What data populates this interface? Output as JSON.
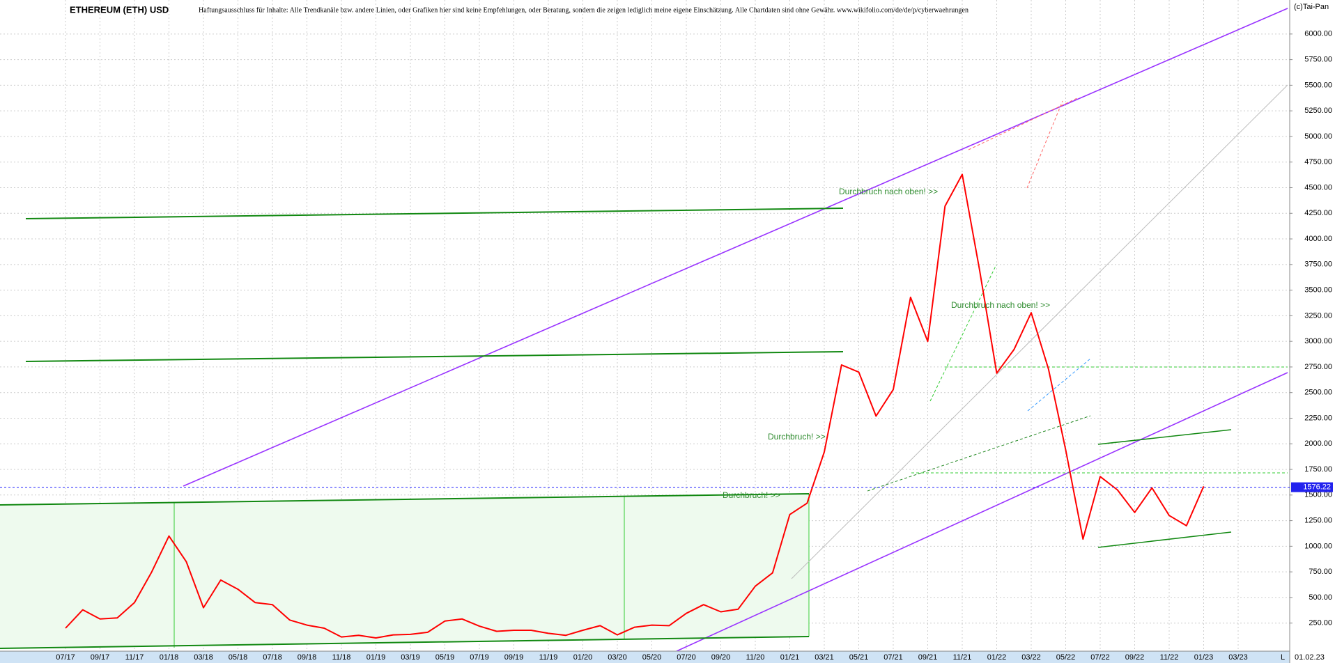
{
  "chart_data": {
    "type": "line",
    "title": "ETHEREUM (ETH) USD",
    "subtitle": "Haftungsausschluss für Inhalte: Alle Trendkanäle bzw. andere Linien, oder Grafiken hier sind keine Empfehlungen, oder Beratung, sondern die zeigen lediglich meine eigene Einschätzung. Alle Chartdaten sind ohne Gewähr. www.wikifolio.com/de/de/p/cyberwaehrungen",
    "source": "(c)Tai-Pan",
    "date_label": "01.02.23",
    "scale_mode": "L",
    "last_price": 1576.22,
    "annotations": [
      "Durchbruch nach oben! >>",
      "Durchbruch nach oben! >>",
      "Durchbruch! >>",
      "Durchbruch! >>"
    ],
    "categories": [
      "07/17",
      null,
      "09/17",
      null,
      "11/17",
      null,
      "01/18",
      null,
      "03/18",
      null,
      "05/18",
      null,
      "07/18",
      null,
      "09/18",
      null,
      "11/18",
      null,
      "01/19",
      null,
      "03/19",
      null,
      "05/19",
      null,
      "07/19",
      null,
      "09/19",
      null,
      "11/19",
      null,
      "01/20",
      null,
      "03/20",
      null,
      "05/20",
      null,
      "07/20",
      null,
      "09/20",
      null,
      "11/20",
      null,
      "01/21",
      null,
      "03/21",
      null,
      "05/21",
      null,
      "07/21",
      null,
      "09/21",
      null,
      "11/21",
      null,
      "01/22",
      null,
      "03/22",
      null,
      "05/22",
      null,
      "07/22",
      null,
      "09/22",
      null,
      "11/22",
      null,
      "01/23",
      null,
      "03/23"
    ],
    "series": [
      {
        "name": "ETH",
        "color": "#ff0000",
        "values": [
          200,
          380,
          290,
          300,
          450,
          750,
          1100,
          850,
          400,
          670,
          580,
          450,
          430,
          280,
          230,
          200,
          115,
          130,
          105,
          135,
          140,
          160,
          270,
          290,
          220,
          170,
          180,
          180,
          150,
          130,
          180,
          225,
          135,
          210,
          230,
          225,
          345,
          430,
          360,
          385,
          610,
          740,
          1310,
          1420,
          1920,
          2770,
          2700,
          2270,
          2530,
          3430,
          3000,
          4320,
          4630,
          3700,
          2690,
          2920,
          3280,
          2730,
          1940,
          1070,
          1680,
          1550,
          1330,
          1570,
          1300,
          1200,
          1585,
          null,
          null
        ]
      }
    ],
    "ylim": [
      -24,
      6332
    ],
    "yticks": [
      {
        "value": 250,
        "label": "250.00"
      },
      {
        "value": 500,
        "label": "500.00"
      },
      {
        "value": 750,
        "label": "750.00"
      },
      {
        "value": 1000,
        "label": "1000.00"
      },
      {
        "value": 1250,
        "label": "1250.00"
      },
      {
        "value": 1500,
        "label": "1500.00"
      },
      {
        "value": 1750,
        "label": "1750.00"
      },
      {
        "value": 2000,
        "label": "2000.00"
      },
      {
        "value": 2250,
        "label": "2250.00"
      },
      {
        "value": 2500,
        "label": "2500.00"
      },
      {
        "value": 2750,
        "label": "2750.00"
      },
      {
        "value": 3000,
        "label": "3000.00"
      },
      {
        "value": 3250,
        "label": "3250.00"
      },
      {
        "value": 3500,
        "label": "3500.00"
      },
      {
        "value": 3750,
        "label": "3750.00"
      },
      {
        "value": 4000,
        "label": "4000.00"
      },
      {
        "value": 4250,
        "label": "4250.00"
      },
      {
        "value": 4500,
        "label": "4500.00"
      },
      {
        "value": 4750,
        "label": "4750.00"
      },
      {
        "value": 5000,
        "label": "5000.00"
      },
      {
        "value": 5250,
        "label": "5250.00"
      },
      {
        "value": 5500,
        "label": "5500.00"
      },
      {
        "value": 5750,
        "label": "5750.00"
      },
      {
        "value": 6000,
        "label": "6000.00"
      }
    ],
    "grid": true
  }
}
